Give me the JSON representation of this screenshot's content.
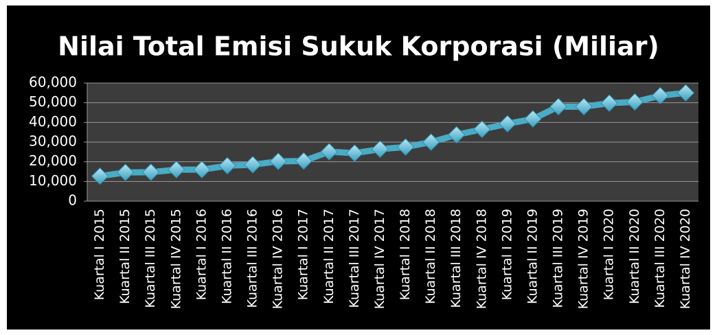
{
  "chart_data": {
    "type": "line",
    "title": "Nilai Total Emisi Sukuk Korporasi (Miliar)",
    "categories": [
      "Kuartal I 2015",
      "Kuartal II 2015",
      "Kuartal III 2015",
      "Kuartal IV 2015",
      "Kuartal I 2016",
      "Kuartal II 2016",
      "Kuartal III 2016",
      "Kuartal IV 2016",
      "Kuartal I 2017",
      "Kuartal II 2017",
      "Kuartal III 2017",
      "Kuartal IV 2017",
      "Kuartal I 2018",
      "Kuartal II 2018",
      "Kuartal III 2018",
      "Kuartal IV 2018",
      "Kuartal I 2019",
      "Kuartal II 2019",
      "Kuartal III 2019",
      "Kuartal IV 2019",
      "Kuartal I 2020",
      "Kuartal II 2020",
      "Kuartal III 2020",
      "Kuartal IV 2020"
    ],
    "values": [
      12700,
      14600,
      14700,
      16000,
      16000,
      18000,
      18500,
      20200,
      20400,
      25100,
      24400,
      26400,
      27500,
      30000,
      33700,
      36500,
      39300,
      41800,
      48000,
      48000,
      49800,
      50400,
      53600,
      55000
    ],
    "color": "#4bacc6",
    "ylim": [
      0,
      60000
    ],
    "yticks": [
      0,
      {
        "value": 10000,
        "label": "10,000"
      },
      {
        "value": 20000,
        "label": "20,000"
      },
      {
        "value": 30000,
        "label": "30,000"
      },
      {
        "value": 40000,
        "label": "40,000"
      },
      {
        "value": 50000,
        "label": "50,000"
      },
      {
        "value": 60000,
        "label": "60,000"
      }
    ],
    "grid": true
  }
}
